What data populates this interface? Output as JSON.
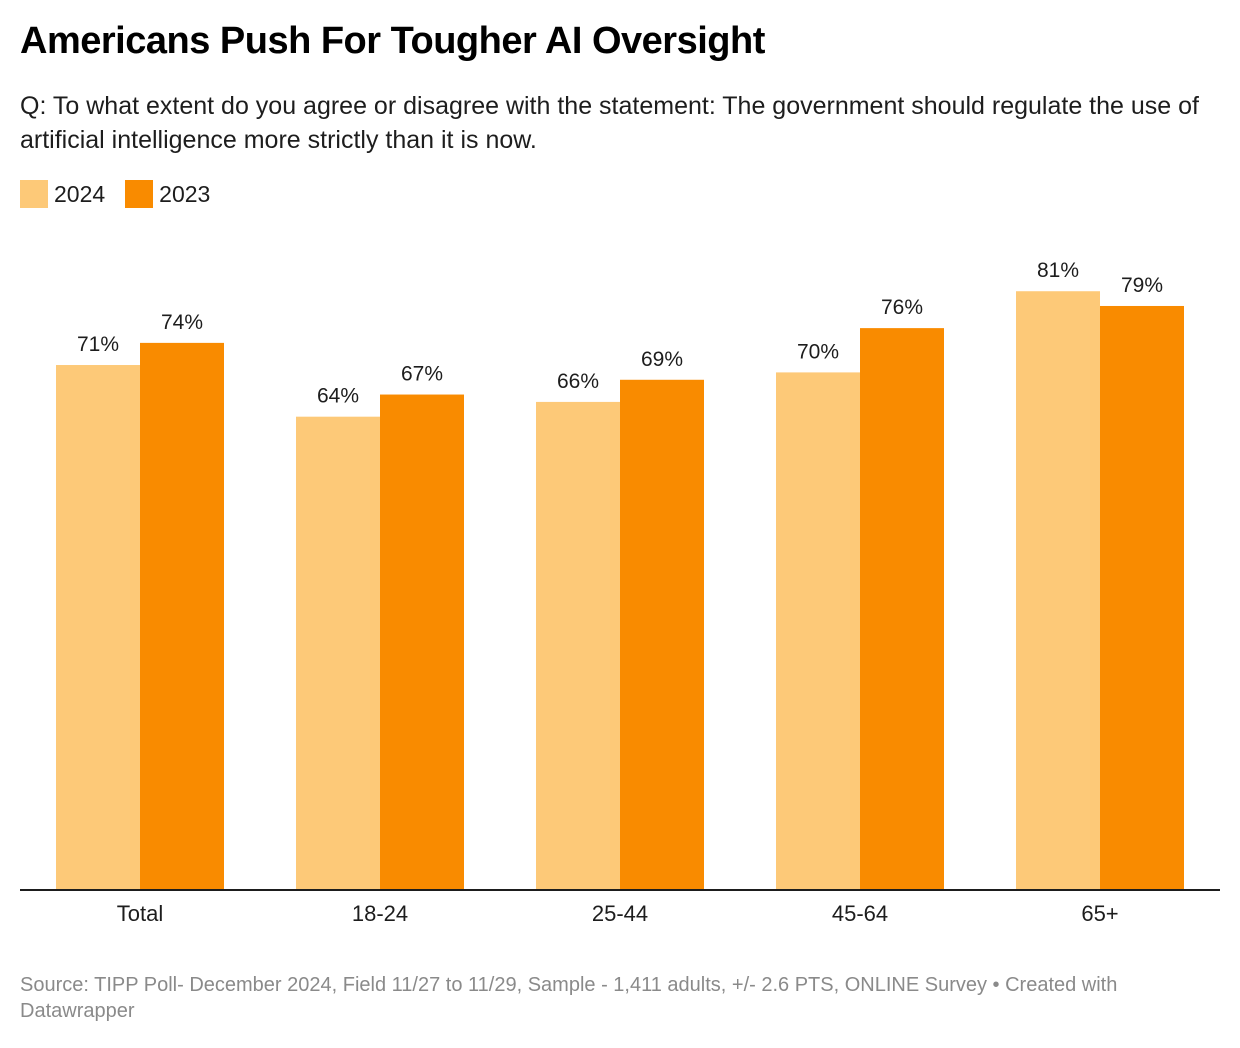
{
  "title": "Americans Push For Tougher AI Oversight",
  "subtitle": "Q: To what extent do you agree or disagree with the statement: The government should regulate the use of artificial intelligence more strictly than it is now.",
  "legend": [
    {
      "label": "2024",
      "color": "#fdc978"
    },
    {
      "label": "2023",
      "color": "#f98b00"
    }
  ],
  "footer": "Source: TIPP Poll- December 2024, Field 11/27 to 11/29, Sample - 1,411 adults, +/- 2.6 PTS, ONLINE Survey • Created with Datawrapper",
  "chart_data": {
    "type": "bar",
    "title": "Americans Push For Tougher AI Oversight",
    "xlabel": "",
    "ylabel": "",
    "categories": [
      "Total",
      "18-24",
      "25-44",
      "45-64",
      "65+"
    ],
    "series": [
      {
        "name": "2024",
        "color": "#fdc978",
        "values": [
          71,
          64,
          66,
          70,
          81
        ]
      },
      {
        "name": "2023",
        "color": "#f98b00",
        "values": [
          74,
          67,
          69,
          76,
          79
        ]
      }
    ],
    "value_suffix": "%",
    "ylim": [
      0,
      100
    ],
    "grid": false,
    "legend_position": "top-left"
  }
}
